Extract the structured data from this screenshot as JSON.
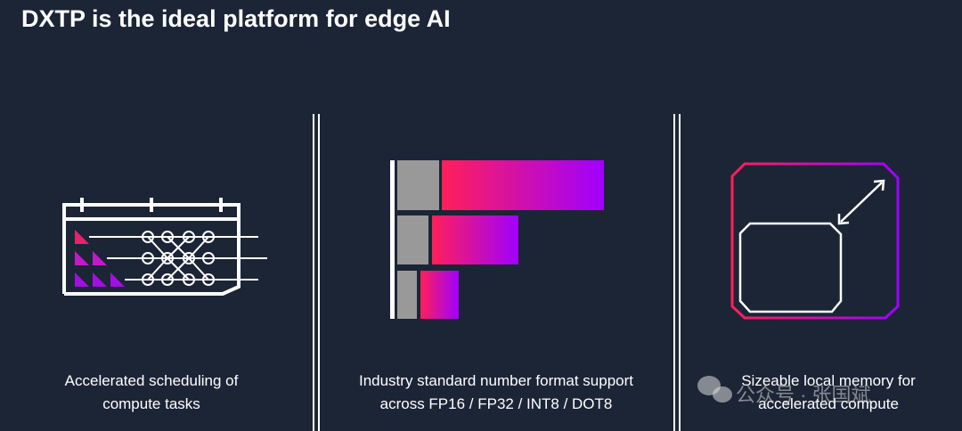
{
  "header": {
    "title": "DXTP is the ideal platform for edge AI"
  },
  "columns": [
    {
      "caption": "Accelerated scheduling of compute tasks"
    },
    {
      "caption": "Industry standard number format support across FP16 / FP32 / INT8 / DOT8"
    },
    {
      "caption": "Sizeable local memory for accelerated compute"
    }
  ],
  "watermark": "公众号 · 张国斌"
}
